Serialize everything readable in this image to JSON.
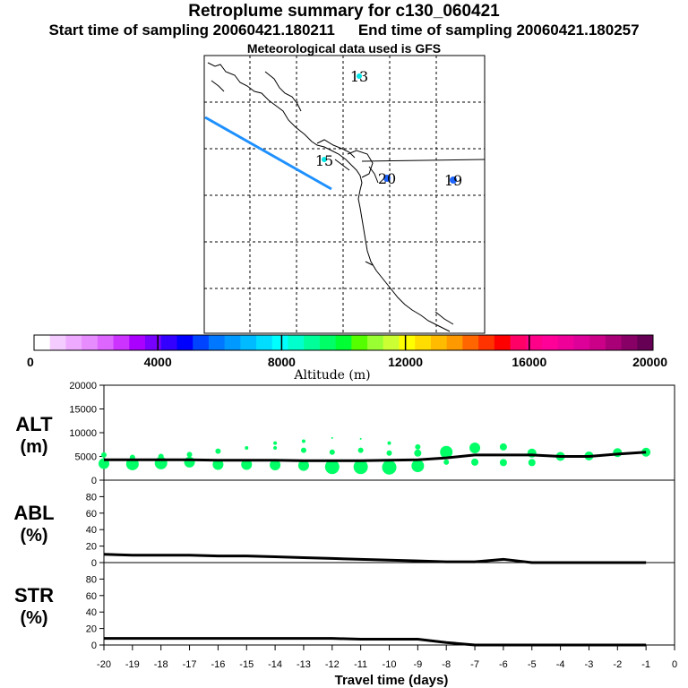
{
  "header": {
    "title": "Retroplume summary for c130_060421",
    "start_label": "Start time of sampling 20060421.180211",
    "end_label": "End time of sampling 20060421.180257",
    "met_label": "Meteorological data used is GFS"
  },
  "colors": {
    "track": "#1e90ff",
    "dots": "#00ff66",
    "line": "#000000",
    "marker_cyan": "#00e5e5",
    "marker_blue": "#1e64ff"
  },
  "map": {
    "markers": [
      {
        "label": "13",
        "color": "#00e5e5"
      },
      {
        "label": "15",
        "color": "#00e5e5"
      },
      {
        "label": "20",
        "color": "#1e64ff"
      },
      {
        "label": "19",
        "color": "#1e64ff"
      }
    ]
  },
  "colorbar": {
    "ticks": [
      "0",
      "4000",
      "8000",
      "12000",
      "16000",
      "20000"
    ],
    "label": "Altitude (m)",
    "colors": [
      "#ffffff",
      "#f4ccff",
      "#eeaaff",
      "#e68cff",
      "#dd66ff",
      "#cc33ff",
      "#aa00ff",
      "#7700ff",
      "#3300ff",
      "#0000ff",
      "#0044ff",
      "#0077ff",
      "#0099ff",
      "#00bbff",
      "#00ddff",
      "#00ffff",
      "#00ffcc",
      "#00ff99",
      "#00ff66",
      "#00ff33",
      "#55ff00",
      "#99ff33",
      "#ccff33",
      "#ffff00",
      "#ffdd00",
      "#ffbb00",
      "#ff9900",
      "#ff6600",
      "#ff3300",
      "#ff0000",
      "#ff0066",
      "#ff0088",
      "#ff0099",
      "#ee0099",
      "#dd0099",
      "#cc0088",
      "#aa0077",
      "#880066",
      "#660055"
    ]
  },
  "chart_data": [
    {
      "type": "scatter",
      "panel": "ALT",
      "ylabel": "ALT (m)",
      "ylabel_top": "ALT",
      "ylabel_bottom": "(m)",
      "ylim": [
        0,
        20000
      ],
      "yticks": [
        "0",
        "5000",
        "10000",
        "15000",
        "20000"
      ],
      "xlim": [
        -20,
        0
      ],
      "line": {
        "x": [
          -20,
          -19,
          -18,
          -17,
          -16,
          -15,
          -14,
          -13,
          -12,
          -11,
          -10,
          -9,
          -8,
          -7,
          -6,
          -5,
          -4,
          -3,
          -2,
          -1
        ],
        "y": [
          4300,
          4300,
          4300,
          4300,
          4200,
          4200,
          4200,
          4100,
          4100,
          4100,
          4200,
          4300,
          4700,
          5300,
          5300,
          5300,
          5000,
          5000,
          5500,
          5900
        ]
      },
      "dots": [
        {
          "x": -20,
          "y": 3500,
          "r": 6
        },
        {
          "x": -20,
          "y": 5300,
          "r": 3
        },
        {
          "x": -19,
          "y": 3400,
          "r": 7
        },
        {
          "x": -19,
          "y": 4800,
          "r": 3
        },
        {
          "x": -18,
          "y": 3600,
          "r": 7
        },
        {
          "x": -18,
          "y": 5000,
          "r": 3
        },
        {
          "x": -17,
          "y": 3800,
          "r": 6
        },
        {
          "x": -17,
          "y": 5400,
          "r": 3
        },
        {
          "x": -16,
          "y": 3300,
          "r": 6
        },
        {
          "x": -16,
          "y": 6100,
          "r": 3
        },
        {
          "x": -15,
          "y": 3300,
          "r": 6
        },
        {
          "x": -15,
          "y": 6800,
          "r": 2
        },
        {
          "x": -14,
          "y": 3200,
          "r": 6
        },
        {
          "x": -14,
          "y": 6800,
          "r": 2
        },
        {
          "x": -14,
          "y": 7800,
          "r": 2
        },
        {
          "x": -13,
          "y": 3100,
          "r": 6
        },
        {
          "x": -13,
          "y": 6300,
          "r": 3
        },
        {
          "x": -13,
          "y": 8200,
          "r": 2
        },
        {
          "x": -12,
          "y": 2800,
          "r": 8
        },
        {
          "x": -12,
          "y": 5900,
          "r": 3
        },
        {
          "x": -12,
          "y": 8900,
          "r": 1
        },
        {
          "x": -11,
          "y": 2800,
          "r": 8
        },
        {
          "x": -11,
          "y": 6300,
          "r": 3
        },
        {
          "x": -11,
          "y": 8700,
          "r": 1
        },
        {
          "x": -10,
          "y": 2700,
          "r": 8
        },
        {
          "x": -10,
          "y": 5700,
          "r": 3
        },
        {
          "x": -10,
          "y": 7800,
          "r": 2
        },
        {
          "x": -9,
          "y": 3000,
          "r": 7
        },
        {
          "x": -9,
          "y": 5700,
          "r": 4
        },
        {
          "x": -9,
          "y": 7000,
          "r": 3
        },
        {
          "x": -8,
          "y": 5900,
          "r": 7
        },
        {
          "x": -8,
          "y": 3800,
          "r": 3
        },
        {
          "x": -7,
          "y": 6800,
          "r": 6
        },
        {
          "x": -7,
          "y": 3800,
          "r": 4
        },
        {
          "x": -6,
          "y": 7000,
          "r": 4
        },
        {
          "x": -6,
          "y": 3700,
          "r": 4
        },
        {
          "x": -5,
          "y": 5700,
          "r": 5
        },
        {
          "x": -5,
          "y": 3700,
          "r": 4
        },
        {
          "x": -4,
          "y": 5000,
          "r": 5
        },
        {
          "x": -3,
          "y": 5100,
          "r": 5
        },
        {
          "x": -2,
          "y": 5800,
          "r": 5
        },
        {
          "x": -1,
          "y": 5900,
          "r": 5
        }
      ]
    },
    {
      "type": "line",
      "panel": "ABL",
      "ylabel": "ABL (%)",
      "ylabel_top": "ABL",
      "ylabel_bottom": "(%)",
      "ylim": [
        0,
        100
      ],
      "yticks": [
        "0",
        "20",
        "40",
        "60",
        "80"
      ],
      "xlim": [
        -20,
        0
      ],
      "x": [
        -20,
        -19,
        -18,
        -17,
        -16,
        -15,
        -14,
        -13,
        -12,
        -11,
        -10,
        -9,
        -8,
        -7,
        -6,
        -5,
        -4,
        -3,
        -2,
        -1
      ],
      "y": [
        10,
        9,
        9,
        9,
        8,
        8,
        7,
        6,
        5,
        4,
        3,
        2,
        1,
        1,
        4,
        0,
        0,
        0,
        0,
        0
      ]
    },
    {
      "type": "line",
      "panel": "STR",
      "ylabel": "STR (%)",
      "ylabel_top": "STR",
      "ylabel_bottom": "(%)",
      "ylim": [
        0,
        100
      ],
      "yticks": [
        "0",
        "20",
        "40",
        "60",
        "80"
      ],
      "xlim": [
        -20,
        0
      ],
      "x": [
        -20,
        -19,
        -18,
        -17,
        -16,
        -15,
        -14,
        -13,
        -12,
        -11,
        -10,
        -9,
        -8,
        -7,
        -6,
        -5,
        -4,
        -3,
        -2,
        -1
      ],
      "y": [
        8,
        8,
        8,
        8,
        8,
        8,
        8,
        8,
        8,
        7,
        7,
        7,
        3,
        0,
        0,
        0,
        0,
        0,
        0,
        0
      ]
    }
  ],
  "xaxis": {
    "ticks": [
      "-20",
      "-19",
      "-18",
      "-17",
      "-16",
      "-15",
      "-14",
      "-13",
      "-12",
      "-11",
      "-10",
      "-9",
      "-8",
      "-7",
      "-6",
      "-5",
      "-4",
      "-3",
      "-2",
      "-1",
      "0"
    ],
    "label": "Travel time (days)"
  }
}
